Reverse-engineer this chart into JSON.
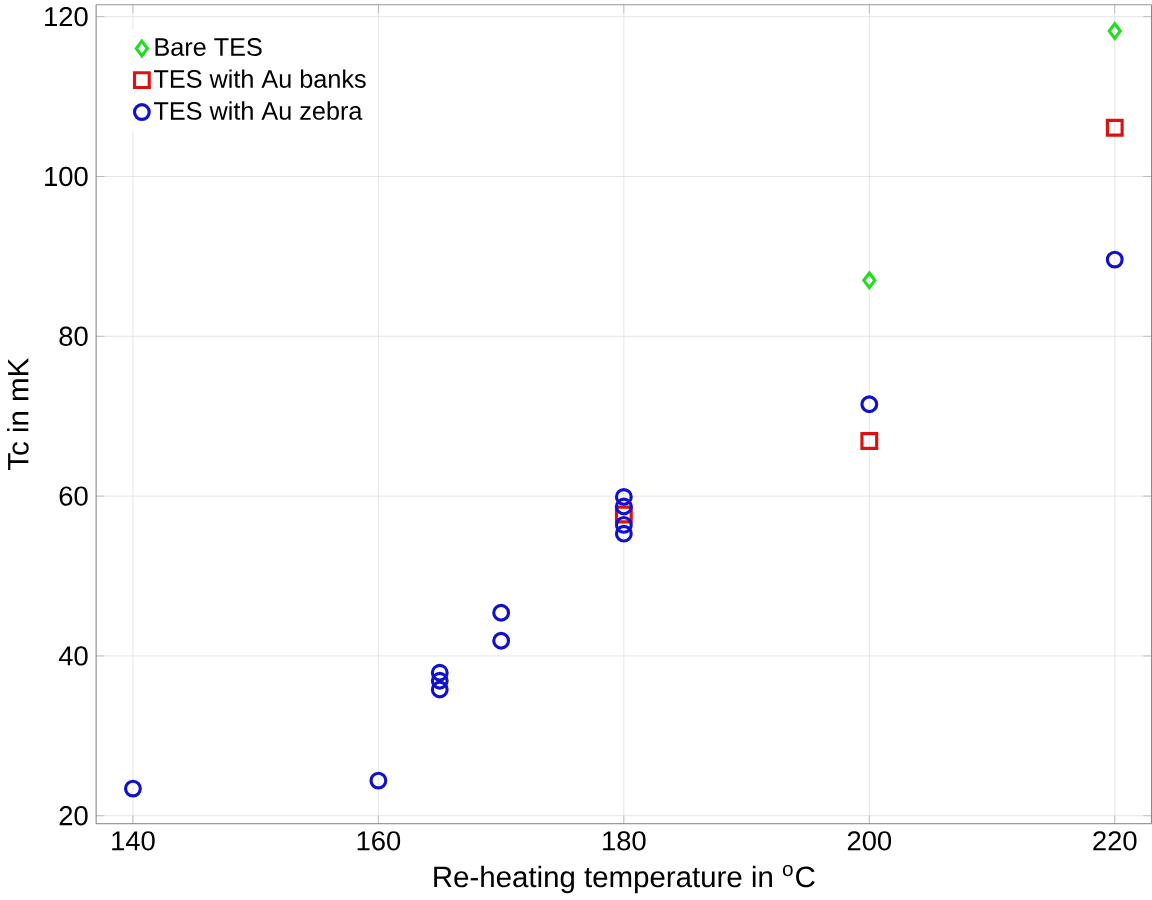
{
  "chart_data": {
    "type": "scatter",
    "xlabel": "Re-heating temperature in $^{o}$C",
    "ylabel": "Tc in mK",
    "xlim": [
      137,
      223
    ],
    "ylim": [
      19,
      121.5
    ],
    "xticks": [
      140,
      160,
      180,
      200,
      220
    ],
    "yticks": [
      20,
      40,
      60,
      80,
      100,
      120
    ],
    "grid": true,
    "legend": "top left",
    "series": [
      {
        "name": "Bare TES",
        "color": "#22dd22",
        "marker": "diamond",
        "x": [
          200,
          220
        ],
        "values": [
          87,
          118.2
        ]
      },
      {
        "name": "TES with Au banks",
        "color": "#dd1111",
        "marker": "square",
        "x": [
          180,
          200,
          220
        ],
        "values": [
          57.7,
          66.9,
          106.1
        ]
      },
      {
        "name": "TES with Au zebra",
        "color": "#1111cc",
        "marker": "circle",
        "x": [
          140,
          160,
          165,
          165,
          165,
          170,
          170,
          180,
          180,
          180,
          180,
          200,
          220
        ],
        "values": [
          23.4,
          24.4,
          37.9,
          36.9,
          35.8,
          45.4,
          41.9,
          59.9,
          58.7,
          56.4,
          55.3,
          71.5,
          89.6
        ]
      }
    ]
  }
}
